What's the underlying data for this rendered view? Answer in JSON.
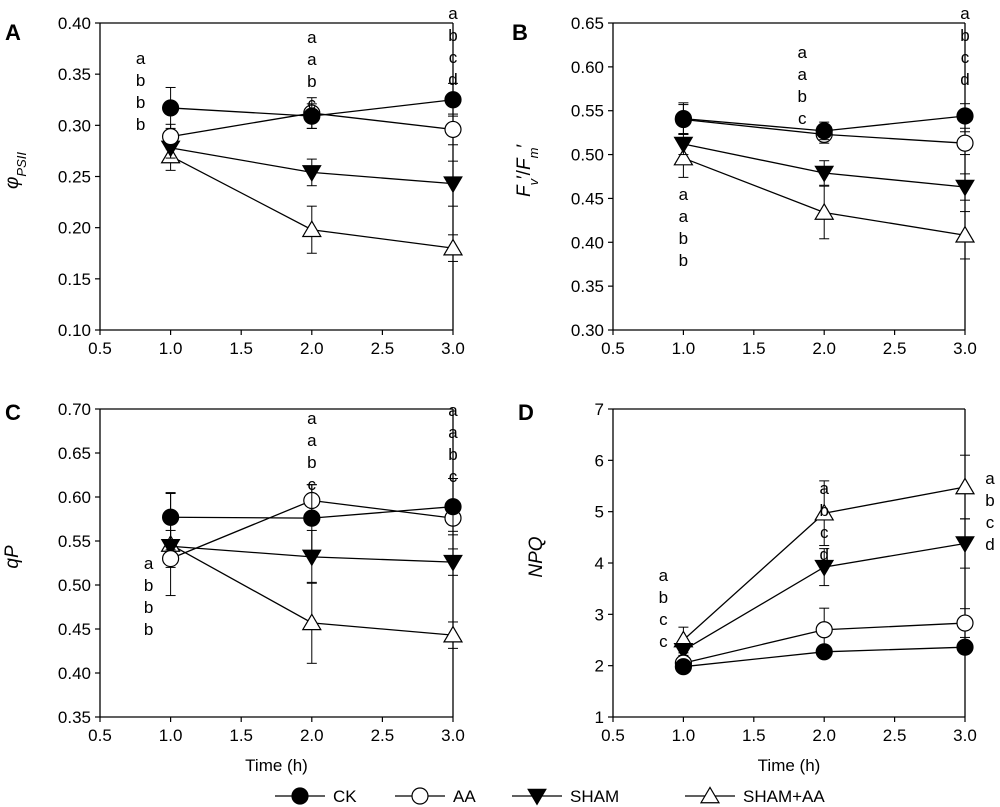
{
  "chart_data": [
    {
      "panel": "A",
      "type": "line",
      "ylabel_main": "φ",
      "ylabel_sub": "PSII",
      "xlabel": "",
      "xlim": [
        0.5,
        3.0
      ],
      "ylim": [
        0.1,
        0.4
      ],
      "xticks": [
        "0.5",
        "1.0",
        "1.5",
        "2.0",
        "2.5",
        "3.0"
      ],
      "yticks": [
        "0.10",
        "0.15",
        "0.20",
        "0.25",
        "0.30",
        "0.35",
        "0.40"
      ],
      "x": [
        1.0,
        2.0,
        3.0
      ],
      "series": [
        {
          "key": "CK",
          "values": [
            0.317,
            0.309,
            0.325
          ],
          "err": [
            0.02,
            0.012,
            0.016
          ]
        },
        {
          "key": "AA",
          "values": [
            0.289,
            0.312,
            0.296
          ],
          "err": [
            0.012,
            0.015,
            0.015
          ]
        },
        {
          "key": "SHAM",
          "values": [
            0.278,
            0.254,
            0.243
          ],
          "err": [
            0.01,
            0.013,
            0.022
          ]
        },
        {
          "key": "SHAM+AA",
          "values": [
            0.27,
            0.198,
            0.18
          ],
          "err": [
            0.014,
            0.023,
            0.013
          ]
        }
      ],
      "sig_groups": [
        {
          "x": 1.0,
          "letters": [
            "a",
            "b",
            "b",
            "b"
          ]
        },
        {
          "x": 2.0,
          "letters": [
            "a",
            "a",
            "b",
            "c"
          ]
        },
        {
          "x": 3.0,
          "letters": [
            "a",
            "b",
            "c",
            "d"
          ]
        }
      ]
    },
    {
      "panel": "B",
      "type": "line",
      "ylabel_main": "F",
      "ylabel_parts": [
        "F",
        "v",
        "′/",
        "F",
        "m",
        "′"
      ],
      "xlabel": "",
      "xlim": [
        0.5,
        3.0
      ],
      "ylim": [
        0.3,
        0.65
      ],
      "xticks": [
        "0.5",
        "1.0",
        "1.5",
        "2.0",
        "2.5",
        "3.0"
      ],
      "yticks": [
        "0.30",
        "0.35",
        "0.40",
        "0.45",
        "0.50",
        "0.55",
        "0.60",
        "0.65"
      ],
      "x": [
        1.0,
        2.0,
        3.0
      ],
      "series": [
        {
          "key": "CK",
          "values": [
            0.541,
            0.527,
            0.544
          ],
          "err": [
            0.018,
            0.01,
            0.014
          ]
        },
        {
          "key": "AA",
          "values": [
            0.54,
            0.523,
            0.513
          ],
          "err": [
            0.017,
            0.01,
            0.013
          ]
        },
        {
          "key": "SHAM",
          "values": [
            0.512,
            0.479,
            0.463
          ],
          "err": [
            0.012,
            0.014,
            0.015
          ]
        },
        {
          "key": "SHAM+AA",
          "values": [
            0.496,
            0.434,
            0.408
          ],
          "err": [
            0.022,
            0.03,
            0.027
          ]
        }
      ],
      "sig_groups": [
        {
          "x": 1.0,
          "letters": [
            "a",
            "a",
            "b",
            "b"
          ]
        },
        {
          "x": 2.0,
          "letters": [
            "a",
            "a",
            "b",
            "c"
          ]
        },
        {
          "x": 3.0,
          "letters": [
            "a",
            "b",
            "c",
            "d"
          ]
        }
      ]
    },
    {
      "panel": "C",
      "type": "line",
      "ylabel_main": "qP",
      "xlabel": "Time (h)",
      "xlim": [
        0.5,
        3.0
      ],
      "ylim": [
        0.35,
        0.7
      ],
      "xticks": [
        "0.5",
        "1.0",
        "1.5",
        "2.0",
        "2.5",
        "3.0"
      ],
      "yticks": [
        "0.35",
        "0.40",
        "0.45",
        "0.50",
        "0.55",
        "0.60",
        "0.65",
        "0.70"
      ],
      "x": [
        1.0,
        2.0,
        3.0
      ],
      "series": [
        {
          "key": "CK",
          "values": [
            0.577,
            0.576,
            0.589
          ],
          "err": [
            0.028,
            0.038,
            0.032
          ]
        },
        {
          "key": "AA",
          "values": [
            0.53,
            0.596,
            0.576
          ],
          "err": [
            0.01,
            0.018,
            0.015
          ]
        },
        {
          "key": "SHAM",
          "values": [
            0.544,
            0.532,
            0.526
          ],
          "err": [
            0.018,
            0.03,
            0.015
          ]
        },
        {
          "key": "SHAM+AA",
          "values": [
            0.546,
            0.457,
            0.443
          ],
          "err": [
            0.058,
            0.046,
            0.015
          ]
        }
      ],
      "sig_groups": [
        {
          "x": 1.0,
          "letters": [
            "a",
            "b",
            "b",
            "b"
          ]
        },
        {
          "x": 2.0,
          "letters": [
            "a",
            "a",
            "b",
            "c"
          ]
        },
        {
          "x": 3.0,
          "letters": [
            "a",
            "a",
            "b",
            "c"
          ]
        }
      ]
    },
    {
      "panel": "D",
      "type": "line",
      "ylabel_main": "NPQ",
      "xlabel": "Time (h)",
      "xlim": [
        0.5,
        3.0
      ],
      "ylim": [
        1,
        7
      ],
      "xticks": [
        "0.5",
        "1.0",
        "1.5",
        "2.0",
        "2.5",
        "3.0"
      ],
      "yticks": [
        "1",
        "2",
        "3",
        "4",
        "5",
        "6",
        "7"
      ],
      "x": [
        1.0,
        2.0,
        3.0
      ],
      "series": [
        {
          "key": "CK",
          "values": [
            1.98,
            2.27,
            2.36
          ],
          "err": [
            0.08,
            0.07,
            0.08
          ]
        },
        {
          "key": "AA",
          "values": [
            2.05,
            2.7,
            2.83
          ],
          "err": [
            0.1,
            0.42,
            0.28
          ]
        },
        {
          "key": "SHAM",
          "values": [
            2.3,
            3.92,
            4.38
          ],
          "err": [
            0.1,
            0.36,
            0.48
          ]
        },
        {
          "key": "SHAM+AA",
          "values": [
            2.5,
            4.97,
            5.48
          ],
          "err": [
            0.25,
            0.63,
            0.62
          ]
        }
      ],
      "sig_groups": [
        {
          "x": 1.0,
          "letters": [
            "a",
            "b",
            "c",
            "c"
          ]
        },
        {
          "x": 2.0,
          "letters": [
            "a",
            "b",
            "c",
            "d"
          ]
        },
        {
          "x": 3.0,
          "letters": [
            "a",
            "b",
            "c",
            "d"
          ]
        }
      ]
    }
  ],
  "legend": {
    "placement": "bottom",
    "items": [
      {
        "key": "CK",
        "label": "CK",
        "marker": "filled-circle"
      },
      {
        "key": "AA",
        "label": "AA",
        "marker": "open-circle"
      },
      {
        "key": "SHAM",
        "label": "SHAM",
        "marker": "filled-triangle-down"
      },
      {
        "key": "SHAM+AA",
        "label": "SHAM+AA",
        "marker": "open-triangle-up"
      }
    ]
  },
  "colors": {
    "ink": "#000000",
    "background": "#ffffff"
  }
}
